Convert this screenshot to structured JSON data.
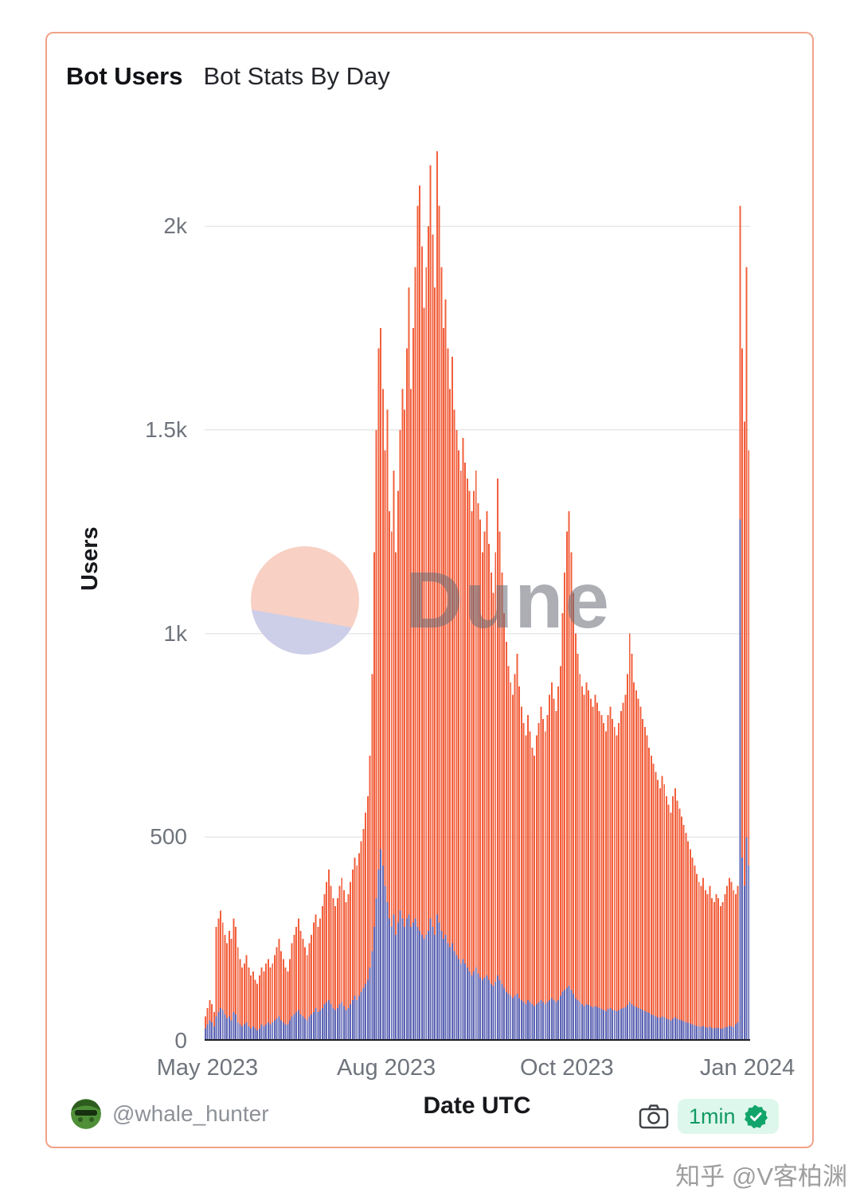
{
  "header": {
    "title": "Bot Users",
    "subtitle": "Bot Stats By Day"
  },
  "watermarks": {
    "chart": "Dune",
    "page": "知乎 @V客柏渊"
  },
  "footer": {
    "author": "@whale_hunter",
    "refresh_label": "1min"
  },
  "icons": {
    "avatar": "frog-avatar",
    "camera": "camera-icon",
    "verified": "verified-check-icon",
    "logo": "dune-pie-logo-icon"
  },
  "colors": {
    "card_border": "#F1A288",
    "orange_bars": "#F2603D",
    "blue_bars": "#5E66B4",
    "grid": "#e7e8ea",
    "axis": "#1c1e21",
    "tick_text": "#6f747c",
    "badge_bg": "#DEF7EC",
    "badge_text": "#129a64",
    "logo_salmon": "#F8CDBF",
    "logo_lavender": "#C9CCE8"
  },
  "chart_data": {
    "type": "bar",
    "title": "Bot Users — Bot Stats By Day",
    "xlabel": "Date UTC",
    "ylabel": "Users",
    "x_start": "2023-05-01",
    "x_cadence": "daily",
    "ylim": [
      0,
      2190
    ],
    "grid": true,
    "legend": "none",
    "y_ticks": [
      {
        "value": 0,
        "label": "0"
      },
      {
        "value": 500,
        "label": "500"
      },
      {
        "value": 1000,
        "label": "1k"
      },
      {
        "value": 1500,
        "label": "1.5k"
      },
      {
        "value": 2000,
        "label": "2k"
      }
    ],
    "x_ticks": [
      {
        "label": "May 2023",
        "pos": 0.005
      },
      {
        "label": "Aug 2023",
        "pos": 0.333
      },
      {
        "label": "Oct 2023",
        "pos": 0.664
      },
      {
        "label": "Jan 2024",
        "pos": 0.995
      }
    ],
    "series": [
      {
        "name": "orange",
        "color": "#F2603D",
        "values": [
          60,
          80,
          100,
          90,
          70,
          280,
          300,
          320,
          290,
          260,
          240,
          270,
          250,
          300,
          280,
          230,
          200,
          180,
          190,
          210,
          180,
          160,
          170,
          150,
          140,
          160,
          180,
          170,
          190,
          200,
          180,
          190,
          210,
          230,
          250,
          220,
          200,
          180,
          170,
          200,
          240,
          260,
          280,
          300,
          270,
          250,
          230,
          210,
          240,
          260,
          290,
          310,
          280,
          300,
          330,
          360,
          390,
          420,
          380,
          350,
          330,
          350,
          380,
          400,
          370,
          340,
          360,
          390,
          420,
          450,
          430,
          460,
          490,
          520,
          560,
          600,
          700,
          900,
          1200,
          1500,
          1700,
          1750,
          1600,
          1450,
          1550,
          1300,
          1250,
          1400,
          1200,
          1350,
          1500,
          1600,
          1550,
          1700,
          1850,
          1600,
          1750,
          1900,
          2050,
          2100,
          1950,
          1800,
          1900,
          2000,
          2150,
          1980,
          1850,
          2184,
          2050,
          1900,
          1750,
          1820,
          1700,
          1600,
          1680,
          1550,
          1500,
          1450,
          1400,
          1480,
          1420,
          1380,
          1350,
          1300,
          1350,
          1400,
          1320,
          1280,
          1200,
          1250,
          1300,
          1220,
          1150,
          1100,
          1200,
          1380,
          1250,
          1150,
          1050,
          980,
          920,
          880,
          850,
          900,
          950,
          870,
          820,
          780,
          750,
          800,
          760,
          720,
          700,
          750,
          780,
          820,
          790,
          760,
          800,
          850,
          880,
          840,
          810,
          870,
          920,
          1050,
          1150,
          1250,
          1300,
          1200,
          1100,
          1000,
          950,
          900,
          870,
          850,
          880,
          860,
          840,
          820,
          850,
          830,
          810,
          800,
          780,
          760,
          800,
          820,
          790,
          770,
          750,
          780,
          810,
          830,
          850,
          900,
          1000,
          950,
          880,
          860,
          840,
          820,
          790,
          770,
          750,
          720,
          700,
          680,
          660,
          640,
          620,
          650,
          630,
          600,
          580,
          560,
          600,
          620,
          590,
          570,
          550,
          530,
          510,
          490,
          470,
          450,
          430,
          410,
          390,
          380,
          400,
          370,
          360,
          380,
          350,
          340,
          360,
          350,
          330,
          340,
          360,
          380,
          400,
          390,
          370,
          360,
          380,
          2050,
          1700,
          1520,
          1900,
          1450
        ]
      },
      {
        "name": "blue",
        "color": "#5E66B4",
        "values": [
          30,
          40,
          50,
          45,
          35,
          60,
          70,
          80,
          75,
          65,
          55,
          60,
          50,
          70,
          65,
          45,
          40,
          35,
          40,
          45,
          35,
          30,
          35,
          30,
          25,
          30,
          40,
          35,
          40,
          45,
          40,
          45,
          50,
          55,
          60,
          50,
          45,
          40,
          40,
          50,
          60,
          65,
          70,
          75,
          65,
          60,
          55,
          50,
          60,
          65,
          70,
          80,
          70,
          75,
          80,
          90,
          95,
          100,
          90,
          80,
          75,
          80,
          90,
          95,
          85,
          75,
          80,
          90,
          100,
          110,
          100,
          110,
          120,
          130,
          140,
          150,
          180,
          220,
          280,
          350,
          420,
          470,
          430,
          380,
          340,
          300,
          280,
          310,
          260,
          290,
          320,
          300,
          280,
          300,
          310,
          280,
          290,
          300,
          280,
          270,
          260,
          250,
          260,
          270,
          300,
          280,
          260,
          310,
          290,
          270,
          250,
          260,
          240,
          230,
          240,
          220,
          210,
          200,
          190,
          200,
          190,
          180,
          170,
          160,
          170,
          180,
          165,
          155,
          150,
          155,
          160,
          150,
          140,
          135,
          145,
          160,
          150,
          140,
          130,
          120,
          115,
          110,
          105,
          110,
          115,
          105,
          100,
          95,
          90,
          100,
          95,
          90,
          85,
          90,
          95,
          100,
          95,
          90,
          95,
          100,
          105,
          100,
          95,
          100,
          110,
          120,
          125,
          130,
          135,
          125,
          115,
          105,
          100,
          95,
          90,
          85,
          90,
          88,
          85,
          82,
          85,
          83,
          80,
          78,
          75,
          72,
          78,
          80,
          76,
          74,
          72,
          75,
          78,
          80,
          82,
          88,
          95,
          90,
          85,
          83,
          80,
          78,
          75,
          72,
          70,
          68,
          65,
          63,
          60,
          58,
          56,
          60,
          58,
          55,
          52,
          50,
          55,
          58,
          54,
          52,
          50,
          48,
          46,
          44,
          42,
          40,
          38,
          36,
          35,
          34,
          36,
          33,
          32,
          34,
          31,
          30,
          32,
          31,
          29,
          30,
          32,
          34,
          36,
          35,
          33,
          40,
          45,
          1280,
          450,
          380,
          500,
          430
        ]
      }
    ]
  }
}
